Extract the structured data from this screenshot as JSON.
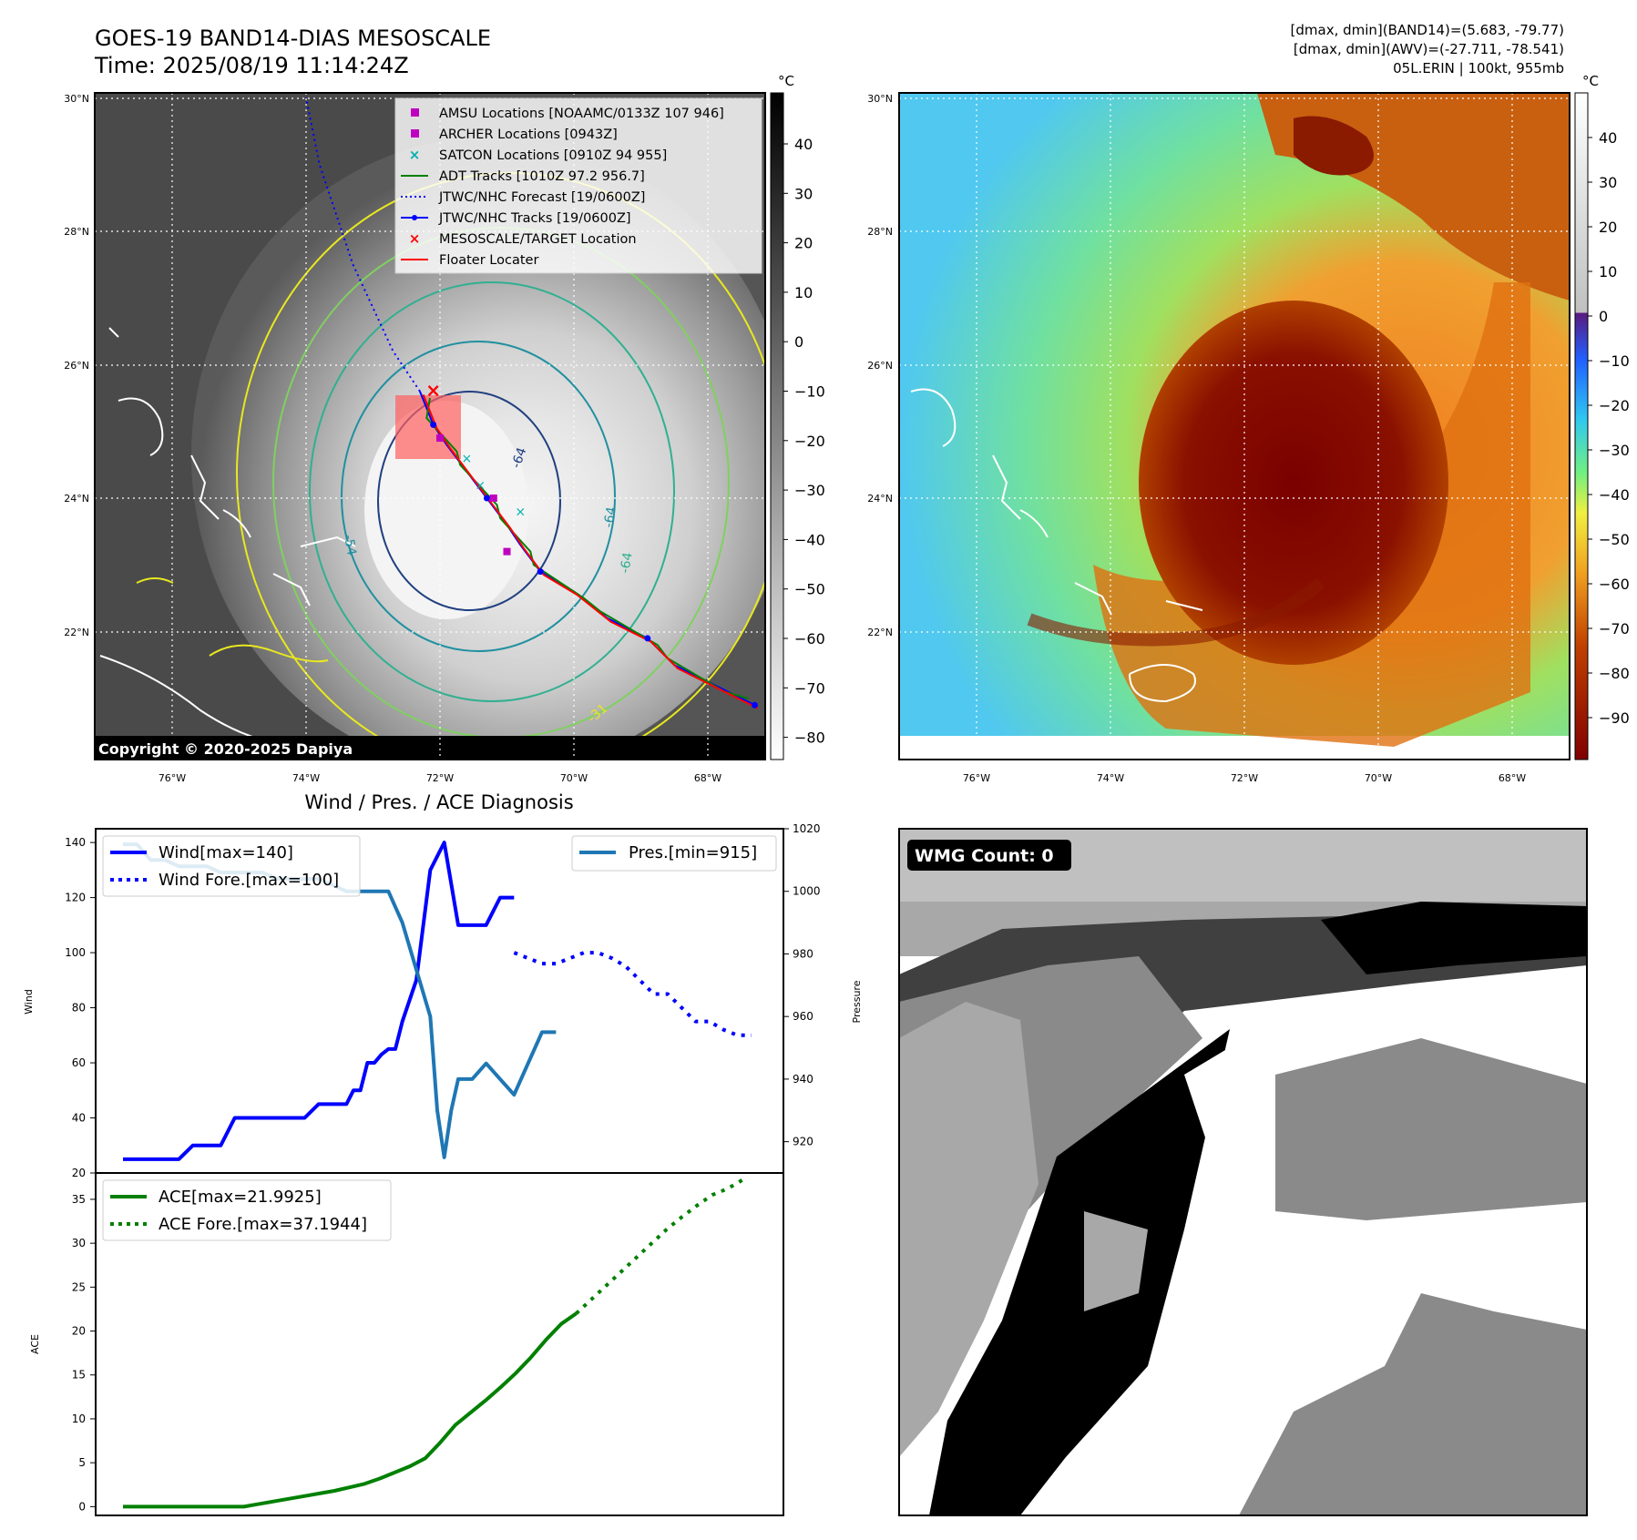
{
  "header": {
    "title_line1": "GOES-19 BAND14-DIAS MESOSCALE",
    "title_line2": "Time: 2025/08/19 11:14:24Z",
    "stats_line1": "[dmax, dmin](BAND14)=(5.683, -79.77)",
    "stats_line2": "[dmax, dmin](AWV)=(-27.711, -78.541)",
    "stats_line3": "05L.ERIN | 100kt, 955mb"
  },
  "maps": {
    "lat_labels": [
      "30°N",
      "28°N",
      "26°N",
      "24°N",
      "22°N"
    ],
    "lon_labels": [
      "76°W",
      "74°W",
      "72°W",
      "70°W",
      "68°W"
    ],
    "copyright": "Copyright © 2020-2025 Dapiya",
    "unit_label": "°C",
    "contour_labels": [
      "-64",
      "-54",
      "-64",
      "-64",
      "-31"
    ],
    "legend": [
      {
        "symbol": "square",
        "color": "#c000c0",
        "label": "AMSU Locations [NOAAMC/0133Z 107 946]"
      },
      {
        "symbol": "square",
        "color": "#c000c0",
        "label": "ARCHER Locations [0943Z]"
      },
      {
        "symbol": "x",
        "color": "#00b0b0",
        "label": "SATCON Locations [0910Z 94 955]"
      },
      {
        "symbol": "line",
        "color": "#008000",
        "label": "ADT Tracks [1010Z 97.2 956.7]"
      },
      {
        "symbol": "dotted",
        "color": "#0000ff",
        "label": "JTWC/NHC Forecast [19/0600Z]"
      },
      {
        "symbol": "line-dot",
        "color": "#0000ff",
        "label": "JTWC/NHC Tracks [19/0600Z]"
      },
      {
        "symbol": "x",
        "color": "#ff0000",
        "label": "MESOSCALE/TARGET Location"
      },
      {
        "symbol": "line",
        "color": "#ff0000",
        "label": "Floater Locater"
      }
    ],
    "gray_colorbar_ticks": [
      "40",
      "30",
      "20",
      "10",
      "0",
      "−10",
      "−20",
      "−30",
      "−40",
      "−50",
      "−60",
      "−70",
      "−80"
    ],
    "color_colorbar_ticks": [
      "40",
      "30",
      "20",
      "10",
      "0",
      "−10",
      "−20",
      "−30",
      "−40",
      "−50",
      "−60",
      "−70",
      "−80",
      "−90"
    ],
    "storm_track": [
      {
        "lat": 20.9,
        "lon": -67.3
      },
      {
        "lat": 21.2,
        "lon": -67.9
      },
      {
        "lat": 21.5,
        "lon": -68.5
      },
      {
        "lat": 21.9,
        "lon": -68.9
      },
      {
        "lat": 22.2,
        "lon": -69.5
      },
      {
        "lat": 22.6,
        "lon": -70.0
      },
      {
        "lat": 22.9,
        "lon": -70.5
      },
      {
        "lat": 23.3,
        "lon": -70.8
      },
      {
        "lat": 23.6,
        "lon": -71.0
      },
      {
        "lat": 24.0,
        "lon": -71.3
      },
      {
        "lat": 24.4,
        "lon": -71.6
      },
      {
        "lat": 24.8,
        "lon": -71.9
      },
      {
        "lat": 25.1,
        "lon": -72.1
      },
      {
        "lat": 25.6,
        "lon": -72.3
      },
      {
        "lat": 26.2,
        "lon": -72.7
      },
      {
        "lat": 27.5,
        "lon": -73.3
      },
      {
        "lat": 29.0,
        "lon": -73.8
      },
      {
        "lat": 30.0,
        "lon": -74.0
      }
    ],
    "target": {
      "lat": 25.6,
      "lon": -72.1
    }
  },
  "diagnosis": {
    "title": "Wind / Pres. / ACE Diagnosis"
  },
  "chart_data": [
    {
      "type": "line",
      "title": "Wind / Pres. / ACE Diagnosis",
      "ylabel": "Wind",
      "ylabel_right": "Pressure",
      "ylim": [
        20,
        145
      ],
      "ylim_right": [
        910,
        1020
      ],
      "yticks": [
        20,
        40,
        60,
        80,
        100,
        120,
        140
      ],
      "yticks_right": [
        920,
        940,
        960,
        980,
        1000,
        1020
      ],
      "legend_left": [
        "Wind[max=140]",
        "Wind Fore.[max=100]"
      ],
      "legend_right": [
        "Pres.[min=915]"
      ],
      "series": [
        {
          "name": "Wind[max=140]",
          "color": "#0000ff",
          "style": "solid",
          "x": [
            0,
            2,
            4,
            6,
            8,
            10,
            12,
            14,
            16,
            18,
            20,
            22,
            24,
            26,
            28,
            30,
            31,
            32,
            33,
            34,
            35,
            36,
            37,
            38,
            39,
            40,
            42,
            44,
            46,
            48,
            50,
            52,
            54,
            56
          ],
          "values": [
            25,
            25,
            25,
            25,
            25,
            30,
            30,
            30,
            40,
            40,
            40,
            40,
            40,
            40,
            45,
            45,
            45,
            45,
            50,
            50,
            60,
            60,
            63,
            65,
            65,
            75,
            90,
            130,
            140,
            110,
            110,
            110,
            120,
            120
          ]
        },
        {
          "name": "Wind Fore.[max=100]",
          "color": "#0000ff",
          "style": "dotted",
          "x": [
            56,
            58,
            60,
            62,
            64,
            66,
            68,
            70,
            72,
            74,
            76,
            78,
            80,
            82,
            84,
            86,
            88,
            90
          ],
          "values": [
            100,
            98,
            96,
            96,
            98,
            100,
            100,
            98,
            95,
            90,
            85,
            85,
            80,
            75,
            75,
            72,
            70,
            70
          ]
        },
        {
          "name": "Pres.[min=915]",
          "color": "#1f77b4",
          "style": "solid",
          "x": [
            0,
            2,
            4,
            6,
            8,
            10,
            12,
            14,
            16,
            18,
            20,
            22,
            24,
            26,
            28,
            30,
            32,
            34,
            36,
            38,
            40,
            42,
            44,
            45,
            46,
            47,
            48,
            50,
            52,
            54,
            56,
            58,
            60,
            62
          ],
          "values": [
            1015,
            1015,
            1010,
            1010,
            1008,
            1008,
            1008,
            1006,
            1006,
            1006,
            1006,
            1004,
            1004,
            1004,
            1004,
            1002,
            1000,
            1000,
            1000,
            1000,
            990,
            975,
            960,
            930,
            915,
            930,
            940,
            940,
            945,
            940,
            935,
            945,
            955,
            955
          ]
        }
      ],
      "wind_values_real": [
        25,
        25,
        25,
        25,
        30,
        30,
        40,
        40,
        40,
        40,
        40,
        45,
        45,
        45,
        50,
        50,
        60,
        60,
        65,
        65,
        75,
        90,
        130,
        140,
        110,
        110,
        110,
        120,
        120,
        100
      ],
      "wind_forecast": [
        100,
        97,
        96,
        96,
        100,
        100,
        98,
        95,
        90,
        85,
        85,
        80,
        75,
        75,
        70
      ],
      "pressure_values": [
        1015,
        1015,
        1010,
        1009,
        1008,
        1008,
        1008,
        1006,
        1006,
        1006,
        1006,
        1004,
        1004,
        1004,
        1002,
        1002,
        1002,
        1002,
        998,
        990,
        975,
        935,
        915,
        940,
        945,
        945,
        946,
        944,
        935,
        937,
        950,
        956
      ]
    },
    {
      "type": "line",
      "ylabel": "ACE",
      "ylim": [
        -1,
        38
      ],
      "yticks": [
        0,
        5,
        10,
        15,
        20,
        25,
        30,
        35
      ],
      "legend": [
        "ACE[max=21.9925]",
        "ACE Fore.[max=37.1944]"
      ],
      "series": [
        {
          "name": "ACE[max=21.9925]",
          "color": "#008000",
          "style": "solid",
          "values": [
            0,
            0,
            0,
            0,
            0,
            0,
            0,
            0,
            0,
            0.3,
            0.6,
            0.9,
            1.2,
            1.5,
            1.8,
            2.2,
            2.6,
            3.2,
            3.9,
            4.6,
            5.5,
            7.3,
            9.3,
            10.7,
            12.1,
            13.6,
            15.2,
            17.0,
            19.0,
            20.8,
            22.0
          ]
        },
        {
          "name": "ACE Fore.[max=37.1944]",
          "color": "#008000",
          "style": "dotted",
          "values": [
            22.0,
            23.6,
            25.2,
            26.8,
            28.4,
            30.0,
            31.6,
            33.0,
            34.3,
            35.5,
            36.2,
            37.2
          ]
        }
      ]
    }
  ],
  "wmg": {
    "label": "WMG Count: 0"
  }
}
